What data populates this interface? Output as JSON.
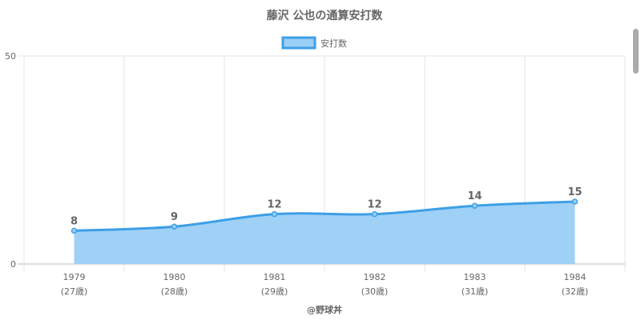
{
  "chart_data": {
    "type": "area",
    "title": "藤沢 公也の通算安打数",
    "categories": [
      "1979",
      "1980",
      "1981",
      "1982",
      "1983",
      "1984"
    ],
    "age_labels": [
      "(27歳)",
      "(28歳)",
      "(29歳)",
      "(30歳)",
      "(31歳)",
      "(32歳)"
    ],
    "series": [
      {
        "name": "安打数",
        "values": [
          8,
          9,
          12,
          12,
          14,
          15
        ]
      }
    ],
    "ylim": [
      0,
      50
    ],
    "y_ticks": [
      0,
      50
    ],
    "data_labels": true,
    "grid": true,
    "legend": "top-center",
    "colors": {
      "line": "#3d9fe6",
      "fill": "#9acff5",
      "grid": "#e6e6e6",
      "text": "#666666"
    }
  },
  "credit": "@野球丼"
}
